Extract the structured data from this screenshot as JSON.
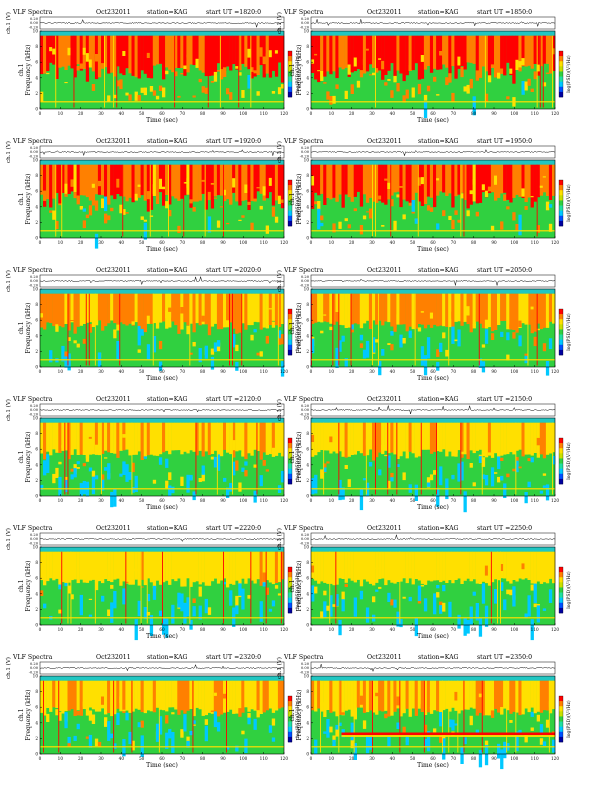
{
  "page": {
    "title_prefix": "VLF Spectra",
    "date": "Oct232011",
    "station": "station=KAG",
    "colors": {
      "background_band": "#21c6c2",
      "colormap": [
        "#0000a0",
        "#0050ff",
        "#00c8ff",
        "#20e0a0",
        "#30d040",
        "#c8e000",
        "#ffe000",
        "#ff8000",
        "#ff0000"
      ]
    }
  },
  "chart_data": [
    {
      "type": "heatmap",
      "title": "VLF Spectra",
      "date": "Oct232011",
      "station": "station=KAG",
      "start_label": "start  UT  =1820:0",
      "waveform_ylabel": "ch.1 (V)",
      "waveform_ticks": [
        "0.20",
        "0.00",
        "-0.20"
      ],
      "ylabel": "Frequency  (kHz)",
      "ylabel_channel": "ch.1",
      "xlabel": "Time  (sec)",
      "xlim": [
        0,
        120
      ],
      "ylim": [
        0,
        10
      ],
      "xticks": [
        0,
        10,
        20,
        30,
        40,
        50,
        60,
        70,
        80,
        90,
        100,
        110,
        120
      ],
      "yticks": [
        0,
        2,
        4,
        6,
        8,
        10
      ],
      "colorbar_label": "log(PSD)(V²/Hz)",
      "activity": 0.85,
      "band_khz": []
    },
    {
      "type": "heatmap",
      "title": "VLF Spectra",
      "date": "Oct232011",
      "station": "station=KAG",
      "start_label": "start  UT  =1850:0",
      "waveform_ylabel": "ch.1 (V)",
      "waveform_ticks": [
        "0.20",
        "0.00",
        "-0.20"
      ],
      "ylabel": "Frequency  (kHz)",
      "ylabel_channel": "ch.1",
      "xlabel": "Time  (sec)",
      "xlim": [
        0,
        120
      ],
      "ylim": [
        0,
        10
      ],
      "xticks": [
        0,
        10,
        20,
        30,
        40,
        50,
        60,
        70,
        80,
        90,
        100,
        110,
        120
      ],
      "yticks": [
        0,
        2,
        4,
        6,
        8,
        10
      ],
      "colorbar_label": "log(PSD)(V²/Hz)",
      "activity": 0.85,
      "band_khz": []
    },
    {
      "type": "heatmap",
      "title": "VLF Spectra",
      "date": "Oct232011",
      "station": "station=KAG",
      "start_label": "start  UT  =1920:0",
      "waveform_ylabel": "ch.1 (V)",
      "waveform_ticks": [
        "0.20",
        "0.00",
        "-0.20"
      ],
      "ylabel": "Frequency  (kHz)",
      "ylabel_channel": "ch.1",
      "xlabel": "Time  (sec)",
      "xlim": [
        0,
        120
      ],
      "ylim": [
        0,
        10
      ],
      "xticks": [
        0,
        10,
        20,
        30,
        40,
        50,
        60,
        70,
        80,
        90,
        100,
        110,
        120
      ],
      "yticks": [
        0,
        2,
        4,
        6,
        8,
        10
      ],
      "colorbar_label": "log(PSD)(V²/Hz)",
      "activity": 0.8,
      "band_khz": []
    },
    {
      "type": "heatmap",
      "title": "VLF Spectra",
      "date": "Oct232011",
      "station": "station=KAG",
      "start_label": "start  UT  =1950:0",
      "waveform_ylabel": "ch.1 (V)",
      "waveform_ticks": [
        "0.20",
        "0.00",
        "-0.20"
      ],
      "ylabel": "Frequency  (kHz)",
      "ylabel_channel": "ch.1",
      "xlabel": "Time  (sec)",
      "xlim": [
        0,
        120
      ],
      "ylim": [
        0,
        10
      ],
      "xticks": [
        0,
        10,
        20,
        30,
        40,
        50,
        60,
        70,
        80,
        90,
        100,
        110,
        120
      ],
      "yticks": [
        0,
        2,
        4,
        6,
        8,
        10
      ],
      "colorbar_label": "log(PSD)(V²/Hz)",
      "activity": 0.8,
      "band_khz": []
    },
    {
      "type": "heatmap",
      "title": "VLF Spectra",
      "date": "Oct232011",
      "station": "station=KAG",
      "start_label": "start  UT  =2020:0",
      "waveform_ylabel": "ch.1 (V)",
      "waveform_ticks": [
        "0.20",
        "0.00",
        "-0.20"
      ],
      "ylabel": "Frequency  (kHz)",
      "ylabel_channel": "ch.1",
      "xlabel": "Time  (sec)",
      "xlim": [
        0,
        120
      ],
      "ylim": [
        0,
        10
      ],
      "xticks": [
        0,
        10,
        20,
        30,
        40,
        50,
        60,
        70,
        80,
        90,
        100,
        110,
        120
      ],
      "yticks": [
        0,
        2,
        4,
        6,
        8,
        10
      ],
      "colorbar_label": "log(PSD)(V²/Hz)",
      "activity": 0.6,
      "band_khz": []
    },
    {
      "type": "heatmap",
      "title": "VLF Spectra",
      "date": "Oct232011",
      "station": "station=KAG",
      "start_label": "start  UT  =2050:0",
      "waveform_ylabel": "ch.1 (V)",
      "waveform_ticks": [
        "0.20",
        "0.00",
        "-0.20"
      ],
      "ylabel": "Frequency  (kHz)",
      "ylabel_channel": "ch.1",
      "xlabel": "Time  (sec)",
      "xlim": [
        0,
        120
      ],
      "ylim": [
        0,
        10
      ],
      "xticks": [
        0,
        10,
        20,
        30,
        40,
        50,
        60,
        70,
        80,
        90,
        100,
        110,
        120
      ],
      "yticks": [
        0,
        2,
        4,
        6,
        8,
        10
      ],
      "colorbar_label": "log(PSD)(V²/Hz)",
      "activity": 0.55,
      "band_khz": []
    },
    {
      "type": "heatmap",
      "title": "VLF Spectra",
      "date": "Oct232011",
      "station": "station=KAG",
      "start_label": "start  UT  =2120:0",
      "waveform_ylabel": "ch.1 (V)",
      "waveform_ticks": [
        "0.20",
        "0.00",
        "-0.20"
      ],
      "ylabel": "Frequency  (kHz)",
      "ylabel_channel": "ch.1",
      "xlabel": "Time  (sec)",
      "xlim": [
        0,
        120
      ],
      "ylim": [
        0,
        10
      ],
      "xticks": [
        0,
        10,
        20,
        30,
        40,
        50,
        60,
        70,
        80,
        90,
        100,
        110,
        120
      ],
      "yticks": [
        0,
        2,
        4,
        6,
        8,
        10
      ],
      "colorbar_label": "log(PSD)(V²/Hz)",
      "activity": 0.45,
      "band_khz": []
    },
    {
      "type": "heatmap",
      "title": "VLF Spectra",
      "date": "Oct232011",
      "station": "station=KAG",
      "start_label": "start  UT  =2150:0",
      "waveform_ylabel": "ch.1 (V)",
      "waveform_ticks": [
        "0.20",
        "0.00",
        "-0.20"
      ],
      "ylabel": "Frequency  (kHz)",
      "ylabel_channel": "ch.1",
      "xlabel": "Time  (sec)",
      "xlim": [
        0,
        120
      ],
      "ylim": [
        0,
        10
      ],
      "xticks": [
        0,
        10,
        20,
        30,
        40,
        50,
        60,
        70,
        80,
        90,
        100,
        110,
        120
      ],
      "yticks": [
        0,
        2,
        4,
        6,
        8,
        10
      ],
      "colorbar_label": "log(PSD)(V²/Hz)",
      "activity": 0.45,
      "band_khz": []
    },
    {
      "type": "heatmap",
      "title": "VLF Spectra",
      "date": "Oct232011",
      "station": "station=KAG",
      "start_label": "start  UT  =2220:0",
      "waveform_ylabel": "ch.1 (V)",
      "waveform_ticks": [
        "0.20",
        "0.00",
        "-0.20"
      ],
      "ylabel": "Frequency  (kHz)",
      "ylabel_channel": "ch.1",
      "xlabel": "Time  (sec)",
      "xlim": [
        0,
        120
      ],
      "ylim": [
        0,
        10
      ],
      "xticks": [
        0,
        10,
        20,
        30,
        40,
        50,
        60,
        70,
        80,
        90,
        100,
        110,
        120
      ],
      "yticks": [
        0,
        2,
        4,
        6,
        8,
        10
      ],
      "colorbar_label": "log(PSD)(V²/Hz)",
      "activity": 0.4,
      "band_khz": []
    },
    {
      "type": "heatmap",
      "title": "VLF Spectra",
      "date": "Oct232011",
      "station": "station=KAG",
      "start_label": "start  UT  =2250:0",
      "waveform_ylabel": "ch.1 (V)",
      "waveform_ticks": [
        "0.20",
        "0.00",
        "-0.20"
      ],
      "ylabel": "Frequency  (kHz)",
      "ylabel_channel": "ch.1",
      "xlabel": "Time  (sec)",
      "xlim": [
        0,
        120
      ],
      "ylim": [
        0,
        10
      ],
      "xticks": [
        0,
        10,
        20,
        30,
        40,
        50,
        60,
        70,
        80,
        90,
        100,
        110,
        120
      ],
      "yticks": [
        0,
        2,
        4,
        6,
        8,
        10
      ],
      "colorbar_label": "log(PSD)(V²/Hz)",
      "activity": 0.35,
      "band_khz": []
    },
    {
      "type": "heatmap",
      "title": "VLF Spectra",
      "date": "Oct232011",
      "station": "station=KAG",
      "start_label": "start  UT  =2320:0",
      "waveform_ylabel": "ch.1 (V)",
      "waveform_ticks": [
        "0.20",
        "0.00",
        "-0.20"
      ],
      "ylabel": "Frequency  (kHz)",
      "ylabel_channel": "ch.1",
      "xlabel": "Time  (sec)",
      "xlim": [
        0,
        120
      ],
      "ylim": [
        0,
        10
      ],
      "xticks": [
        0,
        10,
        20,
        30,
        40,
        50,
        60,
        70,
        80,
        90,
        100,
        110,
        120
      ],
      "yticks": [
        0,
        2,
        4,
        6,
        8,
        10
      ],
      "colorbar_label": "log(PSD)(V²/Hz)",
      "activity": 0.45,
      "band_khz": []
    },
    {
      "type": "heatmap",
      "title": "VLF Spectra",
      "date": "Oct232011",
      "station": "station=KAG",
      "start_label": "start  UT  =2350:0",
      "waveform_ylabel": "ch.1 (V)",
      "waveform_ticks": [
        "0.20",
        "0.00",
        "-0.20"
      ],
      "ylabel": "Frequency  (kHz)",
      "ylabel_channel": "ch.1",
      "xlabel": "Time  (sec)",
      "xlim": [
        0,
        120
      ],
      "ylim": [
        0,
        10
      ],
      "xticks": [
        0,
        10,
        20,
        30,
        40,
        50,
        60,
        70,
        80,
        90,
        100,
        110,
        120
      ],
      "yticks": [
        0,
        2,
        4,
        6,
        8,
        10
      ],
      "colorbar_label": "log(PSD)(V²/Hz)",
      "activity": 0.45,
      "band_khz": [
        [
          15,
          120,
          2.6
        ]
      ]
    }
  ]
}
